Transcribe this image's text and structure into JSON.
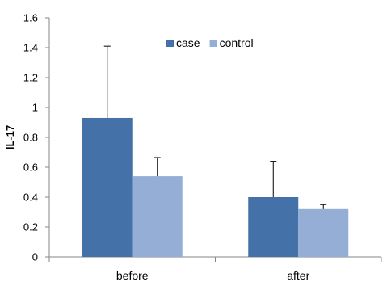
{
  "chart_data": {
    "type": "bar",
    "categories": [
      "before",
      "after"
    ],
    "series": [
      {
        "name": "case",
        "values": [
          0.93,
          0.4
        ],
        "error_upper": [
          0.48,
          0.24
        ],
        "color": "#4472a8"
      },
      {
        "name": "control",
        "values": [
          0.54,
          0.32
        ],
        "error_upper": [
          0.125,
          0.03
        ],
        "color": "#95aed6"
      }
    ],
    "title": "",
    "xlabel": "",
    "ylabel": "IL-17",
    "ylim": [
      0,
      1.6
    ],
    "yticks": [
      "0",
      "0.2",
      "0.4",
      "0.6",
      "0.8",
      "1",
      "1.2",
      "1.4",
      "1.6"
    ],
    "ytick_values": [
      0,
      0.2,
      0.4,
      0.6,
      0.8,
      1.0,
      1.2,
      1.4,
      1.6
    ],
    "grid": false,
    "legend": "top-center"
  }
}
